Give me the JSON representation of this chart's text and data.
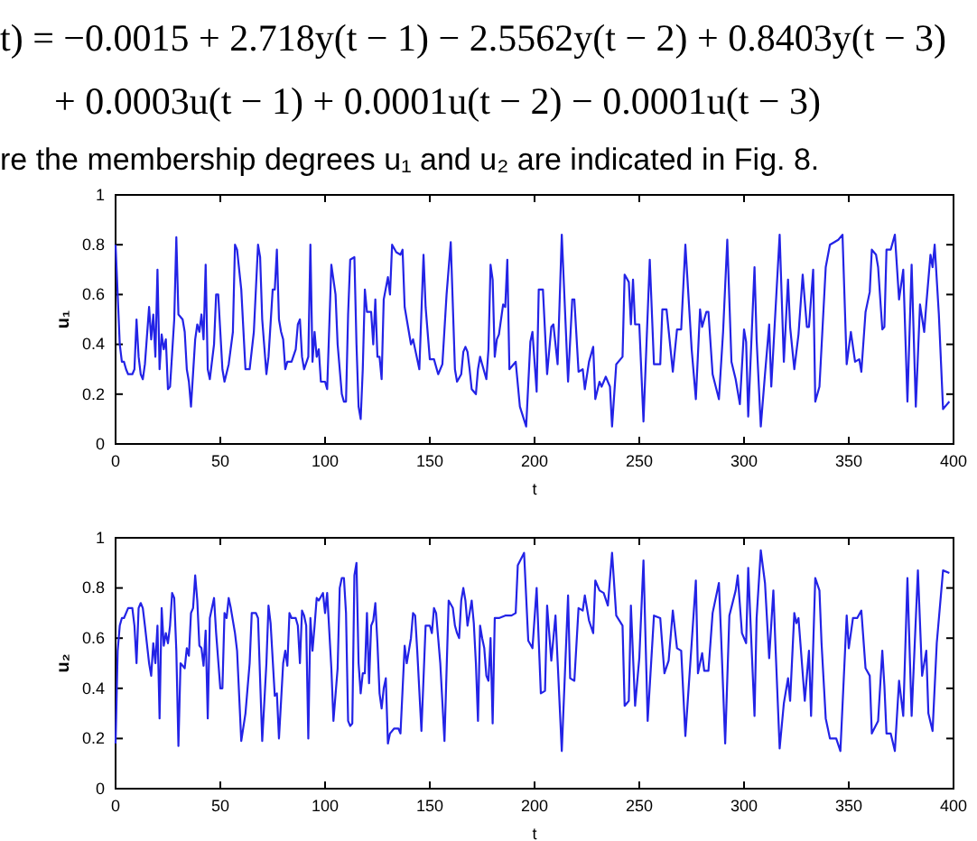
{
  "chart_data": [
    {
      "type": "line",
      "annotations": [
        "t) = −0.0015 + 2.718y(t − 1) − 2.5562y(t − 2) + 0.8403y(t − 3)",
        "+ 0.0003u(t − 1) + 0.0001u(t − 2) − 0.0001u(t − 3)",
        "re the membership degrees u₁ and u₂ are indicated in Fig. 8."
      ],
      "xlabel": "t",
      "ylabel": "u₁",
      "xlim": [
        0,
        400
      ],
      "ylim": [
        0,
        1
      ],
      "xticks": [
        0,
        50,
        100,
        150,
        200,
        250,
        300,
        350,
        400
      ],
      "yticks": [
        0,
        0.2,
        0.4,
        0.6,
        0.8,
        1
      ],
      "grid": false,
      "series": [
        {
          "color": "#2323e6",
          "x": [
            0,
            1,
            2,
            3,
            4,
            5,
            6,
            8,
            9,
            10,
            11,
            12,
            13,
            14,
            16,
            17,
            18,
            19,
            20,
            21,
            22,
            23,
            24,
            25,
            26,
            28,
            29,
            30,
            32,
            33,
            34,
            35,
            36,
            38,
            39,
            40,
            41,
            42,
            43,
            44,
            45,
            47,
            48,
            49,
            50,
            51,
            52,
            54,
            56,
            57,
            58,
            59,
            60,
            62,
            64,
            66,
            68,
            69,
            70,
            72,
            73,
            75,
            76,
            77,
            78,
            79,
            80,
            81,
            82,
            84,
            86,
            87,
            88,
            89,
            90,
            92,
            93,
            94,
            95,
            96,
            97,
            98,
            100,
            101,
            103,
            105,
            106,
            108,
            109,
            110,
            111,
            112,
            114,
            115,
            116,
            117,
            118,
            119,
            120,
            122,
            123,
            124,
            125,
            126,
            127,
            128,
            130,
            131,
            132,
            134,
            136,
            137,
            138,
            140,
            141,
            142,
            143,
            145,
            147,
            148,
            150,
            152,
            154,
            156,
            158,
            160,
            162,
            163,
            165,
            166,
            167,
            168,
            169,
            170,
            172,
            173,
            174,
            175,
            177,
            178,
            179,
            180,
            181,
            182,
            183,
            185,
            186,
            187,
            188,
            191,
            193,
            196,
            198,
            199,
            201,
            202,
            204,
            206,
            208,
            209,
            211,
            213,
            216,
            218,
            219,
            221,
            223,
            224,
            226,
            228,
            229,
            231,
            232,
            234,
            236,
            237,
            239,
            242,
            243,
            245,
            246,
            247,
            248,
            250,
            252,
            255,
            257,
            260,
            261,
            263,
            266,
            268,
            270,
            272,
            273,
            275,
            277,
            279,
            280,
            282,
            283,
            285,
            288,
            290,
            292,
            294,
            296,
            298,
            300,
            301,
            302,
            305,
            306,
            308,
            310,
            312,
            313,
            317,
            319,
            321,
            322,
            324,
            326,
            328,
            330,
            331,
            333,
            334,
            336,
            339,
            341,
            343,
            345,
            347,
            349,
            351,
            353,
            355,
            356,
            358,
            360,
            361,
            363,
            364,
            366,
            367,
            368,
            370,
            372,
            374,
            376,
            378,
            380,
            382,
            384,
            386,
            387,
            389,
            390,
            391,
            393,
            395,
            398
          ],
          "values": [
            0.8,
            0.6,
            0.4,
            0.33,
            0.33,
            0.3,
            0.28,
            0.28,
            0.3,
            0.5,
            0.35,
            0.28,
            0.26,
            0.32,
            0.55,
            0.42,
            0.52,
            0.35,
            0.7,
            0.3,
            0.44,
            0.38,
            0.42,
            0.22,
            0.23,
            0.5,
            0.83,
            0.52,
            0.5,
            0.45,
            0.3,
            0.25,
            0.15,
            0.42,
            0.48,
            0.45,
            0.52,
            0.42,
            0.72,
            0.3,
            0.26,
            0.4,
            0.6,
            0.6,
            0.45,
            0.3,
            0.25,
            0.32,
            0.45,
            0.8,
            0.78,
            0.7,
            0.62,
            0.3,
            0.3,
            0.45,
            0.8,
            0.75,
            0.5,
            0.28,
            0.35,
            0.62,
            0.62,
            0.78,
            0.5,
            0.45,
            0.42,
            0.3,
            0.33,
            0.33,
            0.38,
            0.48,
            0.5,
            0.35,
            0.3,
            0.35,
            0.8,
            0.33,
            0.45,
            0.35,
            0.38,
            0.25,
            0.25,
            0.22,
            0.72,
            0.6,
            0.4,
            0.2,
            0.17,
            0.17,
            0.52,
            0.74,
            0.75,
            0.4,
            0.15,
            0.1,
            0.3,
            0.62,
            0.53,
            0.53,
            0.4,
            0.58,
            0.35,
            0.35,
            0.26,
            0.58,
            0.67,
            0.6,
            0.8,
            0.77,
            0.76,
            0.78,
            0.55,
            0.45,
            0.4,
            0.42,
            0.38,
            0.3,
            0.76,
            0.55,
            0.34,
            0.34,
            0.28,
            0.32,
            0.6,
            0.81,
            0.3,
            0.25,
            0.28,
            0.37,
            0.39,
            0.37,
            0.3,
            0.22,
            0.2,
            0.3,
            0.35,
            0.32,
            0.26,
            0.38,
            0.72,
            0.66,
            0.35,
            0.42,
            0.44,
            0.56,
            0.55,
            0.74,
            0.3,
            0.33,
            0.15,
            0.07,
            0.41,
            0.45,
            0.21,
            0.62,
            0.62,
            0.28,
            0.47,
            0.48,
            0.32,
            0.84,
            0.25,
            0.58,
            0.58,
            0.29,
            0.3,
            0.22,
            0.33,
            0.39,
            0.18,
            0.25,
            0.23,
            0.27,
            0.23,
            0.07,
            0.32,
            0.35,
            0.68,
            0.65,
            0.48,
            0.66,
            0.48,
            0.48,
            0.09,
            0.74,
            0.32,
            0.32,
            0.54,
            0.54,
            0.29,
            0.46,
            0.46,
            0.8,
            0.66,
            0.38,
            0.18,
            0.54,
            0.47,
            0.53,
            0.53,
            0.28,
            0.18,
            0.45,
            0.82,
            0.33,
            0.26,
            0.16,
            0.46,
            0.41,
            0.11,
            0.71,
            0.42,
            0.07,
            0.28,
            0.48,
            0.23,
            0.84,
            0.33,
            0.66,
            0.47,
            0.3,
            0.44,
            0.68,
            0.47,
            0.47,
            0.7,
            0.17,
            0.23,
            0.71,
            0.8,
            0.81,
            0.82,
            0.84,
            0.32,
            0.45,
            0.33,
            0.34,
            0.29,
            0.53,
            0.61,
            0.78,
            0.76,
            0.71,
            0.46,
            0.47,
            0.78,
            0.78,
            0.84,
            0.58,
            0.7,
            0.17,
            0.72,
            0.15,
            0.56,
            0.45,
            0.56,
            0.76,
            0.71,
            0.8,
            0.52,
            0.14,
            0.17
          ]
        }
      ]
    },
    {
      "type": "line",
      "xlabel": "t",
      "ylabel": "u₂",
      "xlim": [
        0,
        400
      ],
      "ylim": [
        0,
        1
      ],
      "xticks": [
        0,
        50,
        100,
        150,
        200,
        250,
        300,
        350,
        400
      ],
      "yticks": [
        0,
        0.2,
        0.4,
        0.6,
        0.8,
        1
      ],
      "grid": false,
      "series": [
        {
          "color": "#2323e6",
          "x": [
            0,
            1,
            2,
            3,
            4,
            6,
            8,
            9,
            10,
            11,
            12,
            13,
            14,
            16,
            17,
            18,
            19,
            20,
            21,
            22,
            23,
            24,
            25,
            26,
            27,
            28,
            29,
            30,
            31,
            33,
            34,
            35,
            36,
            37,
            38,
            39,
            40,
            41,
            42,
            43,
            44,
            45,
            46,
            47,
            48,
            50,
            51,
            52,
            53,
            54,
            55,
            57,
            58,
            60,
            62,
            64,
            65,
            67,
            68,
            70,
            72,
            73,
            74,
            76,
            77,
            78,
            80,
            81,
            82,
            83,
            84,
            86,
            87,
            88,
            89,
            90,
            91,
            92,
            93,
            94,
            95,
            96,
            97,
            99,
            100,
            101,
            103,
            104,
            106,
            107,
            108,
            109,
            110,
            111,
            112,
            113,
            114,
            115,
            116,
            117,
            118,
            119,
            120,
            121,
            122,
            123,
            124,
            125,
            126,
            127,
            128,
            129,
            130,
            131,
            133,
            135,
            136,
            138,
            139,
            140,
            141,
            142,
            143,
            144,
            146,
            148,
            150,
            151,
            152,
            153,
            155,
            157,
            159,
            161,
            162,
            163,
            164,
            165,
            166,
            167,
            168,
            169,
            170,
            171,
            172,
            173,
            174,
            175,
            176,
            177,
            178,
            179,
            180,
            181,
            183,
            186,
            189,
            191,
            192,
            195,
            197,
            199,
            201,
            203,
            205,
            206,
            208,
            210,
            211,
            213,
            216,
            217,
            219,
            221,
            223,
            224,
            226,
            228,
            229,
            231,
            233,
            235,
            237,
            239,
            242,
            243,
            245,
            246,
            248,
            250,
            252,
            254,
            257,
            260,
            262,
            264,
            266,
            268,
            270,
            272,
            275,
            277,
            278,
            280,
            281,
            283,
            285,
            288,
            289,
            291,
            293,
            296,
            297,
            299,
            301,
            302,
            305,
            306,
            308,
            310,
            312,
            314,
            315,
            317,
            319,
            321,
            322,
            324,
            325,
            326,
            329,
            331,
            332,
            334,
            336,
            337,
            339,
            341,
            344,
            346,
            349,
            350,
            352,
            354,
            356,
            358,
            360,
            361,
            364,
            366,
            367,
            368,
            370,
            372,
            374,
            376,
            378,
            380,
            383,
            385,
            387,
            388,
            390,
            392,
            395,
            398
          ],
          "values": [
            0.18,
            0.55,
            0.65,
            0.68,
            0.68,
            0.72,
            0.72,
            0.65,
            0.5,
            0.72,
            0.74,
            0.72,
            0.65,
            0.5,
            0.45,
            0.58,
            0.5,
            0.65,
            0.28,
            0.72,
            0.57,
            0.62,
            0.58,
            0.65,
            0.78,
            0.76,
            0.55,
            0.17,
            0.5,
            0.48,
            0.56,
            0.53,
            0.7,
            0.72,
            0.85,
            0.75,
            0.57,
            0.56,
            0.49,
            0.63,
            0.28,
            0.68,
            0.72,
            0.76,
            0.62,
            0.4,
            0.4,
            0.7,
            0.68,
            0.76,
            0.72,
            0.62,
            0.55,
            0.19,
            0.3,
            0.5,
            0.7,
            0.7,
            0.68,
            0.19,
            0.5,
            0.73,
            0.66,
            0.37,
            0.38,
            0.2,
            0.5,
            0.55,
            0.49,
            0.7,
            0.68,
            0.68,
            0.65,
            0.5,
            0.71,
            0.69,
            0.65,
            0.2,
            0.68,
            0.55,
            0.65,
            0.76,
            0.75,
            0.78,
            0.7,
            0.78,
            0.48,
            0.27,
            0.48,
            0.8,
            0.84,
            0.84,
            0.7,
            0.27,
            0.25,
            0.26,
            0.85,
            0.9,
            0.5,
            0.38,
            0.46,
            0.46,
            0.7,
            0.42,
            0.65,
            0.67,
            0.74,
            0.58,
            0.38,
            0.32,
            0.4,
            0.44,
            0.18,
            0.22,
            0.24,
            0.24,
            0.22,
            0.57,
            0.5,
            0.55,
            0.6,
            0.7,
            0.69,
            0.55,
            0.23,
            0.65,
            0.65,
            0.62,
            0.72,
            0.7,
            0.5,
            0.19,
            0.75,
            0.72,
            0.65,
            0.62,
            0.6,
            0.75,
            0.8,
            0.75,
            0.65,
            0.7,
            0.75,
            0.66,
            0.5,
            0.27,
            0.65,
            0.6,
            0.56,
            0.45,
            0.43,
            0.6,
            0.26,
            0.68,
            0.68,
            0.69,
            0.69,
            0.7,
            0.89,
            0.94,
            0.59,
            0.56,
            0.8,
            0.38,
            0.39,
            0.73,
            0.51,
            0.69,
            0.51,
            0.15,
            0.77,
            0.44,
            0.43,
            0.72,
            0.71,
            0.77,
            0.67,
            0.62,
            0.83,
            0.79,
            0.78,
            0.73,
            0.94,
            0.69,
            0.65,
            0.33,
            0.35,
            0.73,
            0.33,
            0.52,
            0.91,
            0.27,
            0.69,
            0.68,
            0.46,
            0.51,
            0.71,
            0.56,
            0.55,
            0.21,
            0.58,
            0.83,
            0.46,
            0.54,
            0.47,
            0.47,
            0.7,
            0.82,
            0.62,
            0.18,
            0.69,
            0.79,
            0.85,
            0.62,
            0.58,
            0.88,
            0.29,
            0.68,
            0.95,
            0.82,
            0.52,
            0.79,
            0.57,
            0.16,
            0.34,
            0.44,
            0.35,
            0.7,
            0.66,
            0.68,
            0.35,
            0.55,
            0.29,
            0.84,
            0.79,
            0.58,
            0.28,
            0.2,
            0.2,
            0.15,
            0.69,
            0.56,
            0.68,
            0.68,
            0.71,
            0.48,
            0.45,
            0.22,
            0.27,
            0.55,
            0.41,
            0.22,
            0.22,
            0.15,
            0.43,
            0.29,
            0.84,
            0.29,
            0.87,
            0.45,
            0.55,
            0.3,
            0.23,
            0.58,
            0.87,
            0.86
          ]
        }
      ]
    }
  ]
}
